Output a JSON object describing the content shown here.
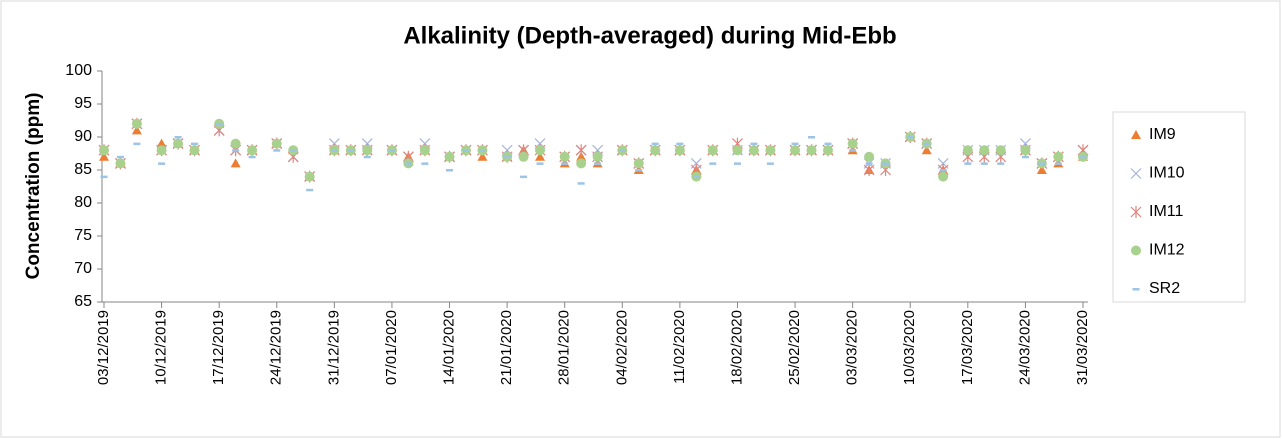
{
  "chart_data": {
    "type": "scatter",
    "title": "Alkalinity (Depth-averaged) during Mid-Ebb",
    "y_label": "Concentration (ppm)",
    "x": [
      "03/12/2019",
      "05/12/2019",
      "07/12/2019",
      "10/12/2019",
      "12/12/2019",
      "14/12/2019",
      "17/12/2019",
      "19/12/2019",
      "21/12/2019",
      "24/12/2019",
      "26/12/2019",
      "28/12/2019",
      "31/12/2019",
      "02/01/2020",
      "04/01/2020",
      "07/01/2020",
      "09/01/2020",
      "11/01/2020",
      "14/01/2020",
      "16/01/2020",
      "18/01/2020",
      "21/01/2020",
      "23/01/2020",
      "25/01/2020",
      "28/01/2020",
      "30/01/2020",
      "01/02/2020",
      "04/02/2020",
      "06/02/2020",
      "08/02/2020",
      "11/02/2020",
      "13/02/2020",
      "15/02/2020",
      "18/02/2020",
      "20/02/2020",
      "22/02/2020",
      "25/02/2020",
      "27/02/2020",
      "29/02/2020",
      "03/03/2020",
      "05/03/2020",
      "07/03/2020",
      "10/03/2020",
      "12/03/2020",
      "14/03/2020",
      "17/03/2020",
      "19/03/2020",
      "21/03/2020",
      "24/03/2020",
      "26/03/2020",
      "28/03/2020",
      "31/03/2020"
    ],
    "series": [
      {
        "name": "IM9",
        "color": "#ed7d31",
        "marker": "triangle",
        "values": [
          87,
          86,
          91,
          89,
          89,
          88,
          92,
          86,
          88,
          89,
          88,
          84,
          88,
          88,
          88,
          88,
          87,
          88,
          87,
          88,
          87,
          87,
          88,
          87,
          86,
          87,
          86,
          88,
          85,
          88,
          88,
          85,
          88,
          88,
          88,
          88,
          88,
          88,
          88,
          88,
          85,
          86,
          90,
          88,
          85,
          88,
          88,
          88,
          88,
          85,
          86,
          87
        ]
      },
      {
        "name": "IM10",
        "color": "#a4b4dc",
        "marker": "x",
        "values": [
          88,
          86,
          92,
          88,
          89,
          88,
          91,
          88,
          88,
          89,
          87,
          84,
          89,
          88,
          89,
          88,
          87,
          89,
          87,
          88,
          88,
          88,
          88,
          89,
          87,
          88,
          88,
          88,
          86,
          88,
          88,
          86,
          88,
          88,
          88,
          88,
          88,
          88,
          88,
          89,
          86,
          86,
          90,
          89,
          86,
          88,
          88,
          88,
          89,
          86,
          87,
          88
        ]
      },
      {
        "name": "IM11",
        "color": "#e0847c",
        "marker": "star",
        "values": [
          88,
          86,
          92,
          88,
          89,
          88,
          91,
          88,
          88,
          89,
          87,
          84,
          88,
          88,
          88,
          88,
          87,
          88,
          87,
          88,
          88,
          87,
          88,
          88,
          87,
          88,
          87,
          88,
          86,
          88,
          88,
          85,
          88,
          89,
          88,
          88,
          88,
          88,
          88,
          89,
          85,
          85,
          90,
          89,
          85,
          87,
          87,
          87,
          88,
          86,
          87,
          88
        ]
      },
      {
        "name": "IM12",
        "color": "#a9d18e",
        "marker": "circle",
        "values": [
          88,
          86,
          92,
          88,
          89,
          88,
          92,
          89,
          88,
          89,
          88,
          84,
          88,
          88,
          88,
          88,
          86,
          88,
          87,
          88,
          88,
          87,
          87,
          88,
          87,
          86,
          87,
          88,
          86,
          88,
          88,
          84,
          88,
          88,
          88,
          88,
          88,
          88,
          88,
          89,
          87,
          86,
          90,
          89,
          84,
          88,
          88,
          88,
          88,
          86,
          87,
          87
        ]
      },
      {
        "name": "SR2",
        "color": "#9dc3e6",
        "marker": "dash",
        "values": [
          84,
          87,
          89,
          86,
          90,
          89,
          92,
          88,
          87,
          88,
          88,
          82,
          88,
          88,
          87,
          88,
          86,
          86,
          85,
          88,
          88,
          87,
          84,
          86,
          86,
          83,
          86,
          88,
          85,
          89,
          89,
          84,
          86,
          86,
          89,
          86,
          89,
          90,
          89,
          88,
          86,
          86,
          90,
          89,
          85,
          86,
          86,
          86,
          87,
          86,
          86,
          87
        ]
      }
    ],
    "xlim": [
      "03/12/2019",
      "31/03/2020"
    ],
    "xticks": [
      "03/12/2019",
      "10/12/2019",
      "17/12/2019",
      "24/12/2019",
      "31/12/2019",
      "07/01/2020",
      "14/01/2020",
      "21/01/2020",
      "28/01/2020",
      "04/02/2020",
      "11/02/2020",
      "18/02/2020",
      "25/02/2020",
      "03/03/2020",
      "10/03/2020",
      "17/03/2020",
      "24/03/2020",
      "31/03/2020"
    ],
    "ylim": [
      65,
      100
    ],
    "yticks": [
      65,
      70,
      75,
      80,
      85,
      90,
      95,
      100
    ],
    "legend": "right"
  }
}
